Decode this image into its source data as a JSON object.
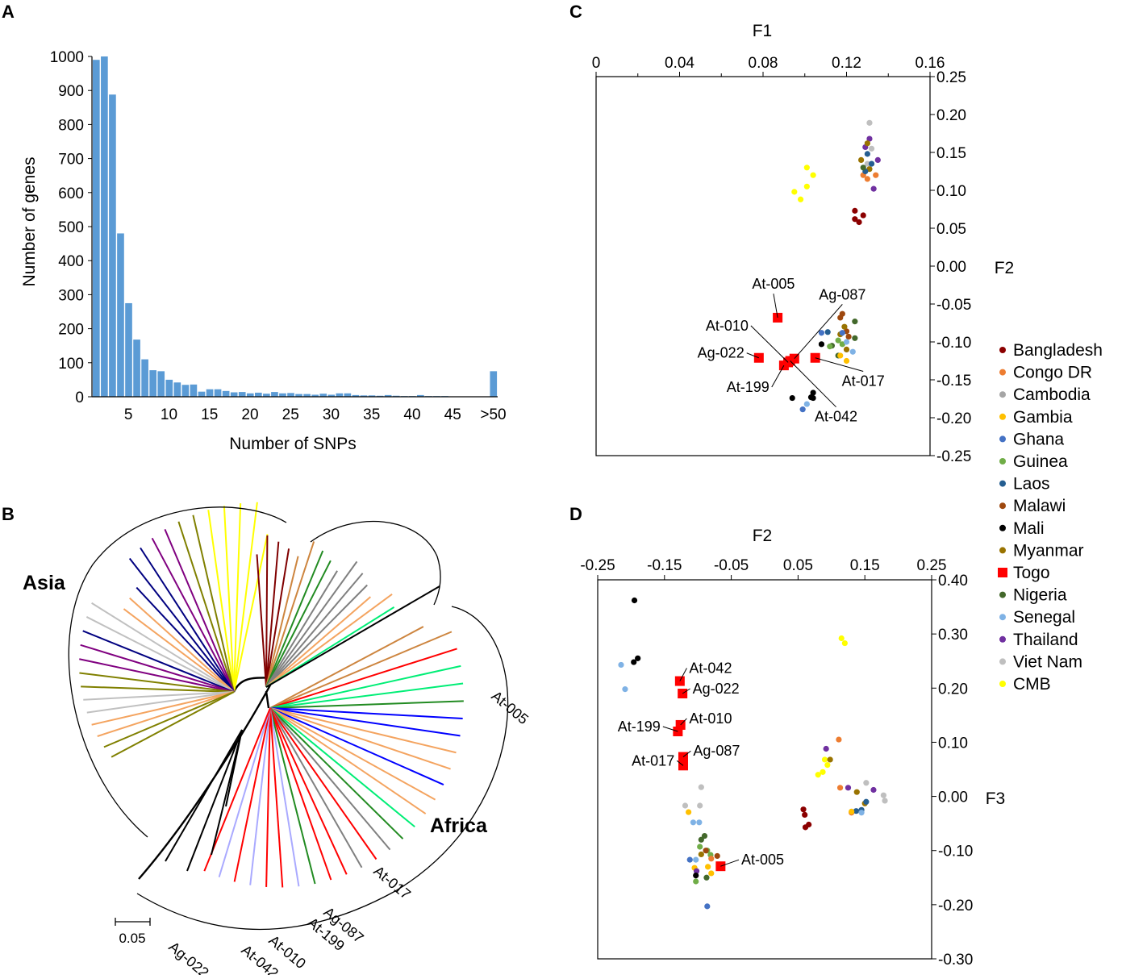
{
  "panels": {
    "A": "A",
    "B": "B",
    "C": "C",
    "D": "D"
  },
  "chart_data": [
    {
      "id": "A",
      "type": "bar",
      "title": "",
      "xlabel": "Number of SNPs",
      "ylabel": "Number of genes",
      "ylim": [
        0,
        1000
      ],
      "yticks": [
        0,
        100,
        200,
        300,
        400,
        500,
        600,
        700,
        800,
        900,
        1000
      ],
      "xtick_labels": [
        "5",
        "10",
        "15",
        "20",
        "25",
        "30",
        "35",
        "40",
        "45",
        ">50"
      ],
      "xtick_positions": [
        5,
        10,
        15,
        20,
        25,
        30,
        35,
        40,
        45,
        50
      ],
      "categories": [
        1,
        2,
        3,
        4,
        5,
        6,
        7,
        8,
        9,
        10,
        11,
        12,
        13,
        14,
        15,
        16,
        17,
        18,
        19,
        20,
        21,
        22,
        23,
        24,
        25,
        26,
        27,
        28,
        29,
        30,
        31,
        32,
        33,
        34,
        35,
        36,
        37,
        38,
        39,
        40,
        41,
        42,
        43,
        44,
        45,
        46,
        47,
        48,
        49,
        50
      ],
      "values": [
        990,
        1000,
        888,
        480,
        275,
        168,
        110,
        78,
        75,
        50,
        42,
        35,
        36,
        15,
        22,
        22,
        17,
        13,
        14,
        10,
        12,
        9,
        14,
        10,
        11,
        8,
        8,
        6,
        9,
        6,
        10,
        10,
        5,
        4,
        4,
        3,
        5,
        3,
        2,
        2,
        5,
        2,
        2,
        2,
        1,
        1,
        1,
        1,
        1,
        75
      ],
      "color": "#5b9bd5"
    },
    {
      "id": "B",
      "type": "tree",
      "labels": {
        "asia": "Asia",
        "africa": "Africa",
        "scale": "0.05",
        "tips": [
          "At-005",
          "At-017",
          "Ag-087",
          "At-199",
          "At-010",
          "At-042",
          "Ag-022"
        ]
      }
    },
    {
      "id": "C",
      "type": "scatter",
      "xlabel": "F1",
      "ylabel": "F2",
      "xlim": [
        0,
        0.16
      ],
      "ylim": [
        -0.25,
        0.25
      ],
      "xticks": [
        "0",
        "0.04",
        "0.08",
        "0.12",
        "0.16"
      ],
      "xtick_values": [
        0,
        0.04,
        0.08,
        0.12,
        0.16
      ],
      "yticks": [
        "0.25",
        "0.20",
        "0.15",
        "0.10",
        "0.05",
        "0.00",
        "-0.05",
        "-0.10",
        "-0.15",
        "-0.20",
        "-0.25"
      ],
      "ytick_values": [
        0.25,
        0.2,
        0.15,
        0.1,
        0.05,
        0,
        -0.05,
        -0.1,
        -0.15,
        -0.2,
        -0.25
      ],
      "points": [
        {
          "c": "CMB",
          "x": 0.101,
          "y": 0.13
        },
        {
          "c": "CMB",
          "x": 0.104,
          "y": 0.12
        },
        {
          "c": "CMB",
          "x": 0.101,
          "y": 0.105
        },
        {
          "c": "CMB",
          "x": 0.095,
          "y": 0.098
        },
        {
          "c": "CMB",
          "x": 0.098,
          "y": 0.088
        },
        {
          "c": "Viet Nam",
          "x": 0.131,
          "y": 0.189
        },
        {
          "c": "Viet Nam",
          "x": 0.132,
          "y": 0.155
        },
        {
          "c": "Viet Nam",
          "x": 0.13,
          "y": 0.135
        },
        {
          "c": "Thailand",
          "x": 0.131,
          "y": 0.168
        },
        {
          "c": "Thailand",
          "x": 0.129,
          "y": 0.157
        },
        {
          "c": "Thailand",
          "x": 0.135,
          "y": 0.14
        },
        {
          "c": "Thailand",
          "x": 0.133,
          "y": 0.102
        },
        {
          "c": "Myanmar",
          "x": 0.13,
          "y": 0.162
        },
        {
          "c": "Myanmar",
          "x": 0.127,
          "y": 0.14
        },
        {
          "c": "Myanmar",
          "x": 0.131,
          "y": 0.128
        },
        {
          "c": "Congo DR",
          "x": 0.128,
          "y": 0.12
        },
        {
          "c": "Congo DR",
          "x": 0.134,
          "y": 0.12
        },
        {
          "c": "Congo DR",
          "x": 0.13,
          "y": 0.115
        },
        {
          "c": "Laos",
          "x": 0.13,
          "y": 0.148
        },
        {
          "c": "Laos",
          "x": 0.129,
          "y": 0.125
        },
        {
          "c": "Laos",
          "x": 0.132,
          "y": 0.135
        },
        {
          "c": "Nigeria",
          "x": 0.128,
          "y": 0.13
        },
        {
          "c": "Bangladesh",
          "x": 0.124,
          "y": 0.073
        },
        {
          "c": "Bangladesh",
          "x": 0.128,
          "y": 0.067
        },
        {
          "c": "Bangladesh",
          "x": 0.124,
          "y": 0.062
        },
        {
          "c": "Bangladesh",
          "x": 0.126,
          "y": 0.058
        },
        {
          "c": "Malawi",
          "x": 0.118,
          "y": -0.063
        },
        {
          "c": "Malawi",
          "x": 0.117,
          "y": -0.068
        },
        {
          "c": "Malawi",
          "x": 0.12,
          "y": -0.086
        },
        {
          "c": "Malawi",
          "x": 0.121,
          "y": -0.093
        },
        {
          "c": "Myanmar",
          "x": 0.119,
          "y": -0.08
        },
        {
          "c": "Myanmar",
          "x": 0.117,
          "y": -0.09
        },
        {
          "c": "Myanmar",
          "x": 0.12,
          "y": -0.11
        },
        {
          "c": "Nigeria",
          "x": 0.124,
          "y": -0.073
        },
        {
          "c": "Nigeria",
          "x": 0.124,
          "y": -0.095
        },
        {
          "c": "Nigeria",
          "x": 0.113,
          "y": -0.105
        },
        {
          "c": "Nigeria",
          "x": 0.116,
          "y": -0.118
        },
        {
          "c": "Guinea",
          "x": 0.116,
          "y": -0.098
        },
        {
          "c": "Guinea",
          "x": 0.118,
          "y": -0.103
        },
        {
          "c": "Guinea",
          "x": 0.112,
          "y": -0.106
        },
        {
          "c": "Ghana",
          "x": 0.108,
          "y": -0.088
        },
        {
          "c": "Ghana",
          "x": 0.118,
          "y": -0.088
        },
        {
          "c": "Laos",
          "x": 0.111,
          "y": -0.087
        },
        {
          "c": "Senegal",
          "x": 0.12,
          "y": -0.1
        },
        {
          "c": "Senegal",
          "x": 0.123,
          "y": -0.113
        },
        {
          "c": "Senegal",
          "x": 0.101,
          "y": -0.182
        },
        {
          "c": "Gambia",
          "x": 0.117,
          "y": -0.118
        },
        {
          "c": "Gambia",
          "x": 0.12,
          "y": -0.125
        },
        {
          "c": "Mali",
          "x": 0.108,
          "y": -0.103
        },
        {
          "c": "Mali",
          "x": 0.104,
          "y": -0.167
        },
        {
          "c": "Mali",
          "x": 0.103,
          "y": -0.173
        },
        {
          "c": "Mali",
          "x": 0.094,
          "y": -0.174
        },
        {
          "c": "Mali",
          "x": 0.104,
          "y": -0.174
        },
        {
          "c": "Ghana",
          "x": 0.099,
          "y": -0.189
        },
        {
          "c": "Togo",
          "x": 0.087,
          "y": -0.068,
          "label": "At-005",
          "lx": 0.085,
          "ly": -0.03,
          "la": "middle"
        },
        {
          "c": "Togo",
          "x": 0.078,
          "y": -0.121,
          "label": "Ag-022",
          "lx": 0.071,
          "ly": -0.121,
          "la": "end"
        },
        {
          "c": "Togo",
          "x": 0.092,
          "y": -0.127,
          "label": "At-010",
          "lx": 0.073,
          "ly": -0.085,
          "la": "end"
        },
        {
          "c": "Togo",
          "x": 0.095,
          "y": -0.122,
          "label": "Ag-087",
          "lx": 0.118,
          "ly": -0.044,
          "la": "middle"
        },
        {
          "c": "Togo",
          "x": 0.105,
          "y": -0.121,
          "label": "At-017",
          "lx": 0.128,
          "ly": -0.158,
          "la": "middle"
        },
        {
          "c": "Togo",
          "x": 0.09,
          "y": -0.131,
          "label": "At-199",
          "lx": 0.083,
          "ly": -0.166,
          "la": "end"
        },
        {
          "c": "Togo",
          "x": 0.093,
          "y": -0.125,
          "label": "At-042",
          "lx": 0.115,
          "ly": -0.205,
          "la": "middle"
        }
      ]
    },
    {
      "id": "D",
      "type": "scatter",
      "xlabel": "F2",
      "ylabel": "F3",
      "xlim": [
        -0.25,
        0.25
      ],
      "ylim": [
        -0.3,
        0.4
      ],
      "xticks": [
        "-0.25",
        "-0.15",
        "-0.05",
        "0.05",
        "0.15",
        "0.25"
      ],
      "xtick_values": [
        -0.25,
        -0.15,
        -0.05,
        0.05,
        0.15,
        0.25
      ],
      "yticks": [
        "0.40",
        "0.30",
        "0.20",
        "0.10",
        "0.00",
        "-0.10",
        "-0.20",
        "-0.30"
      ],
      "ytick_values": [
        0.4,
        0.3,
        0.2,
        0.1,
        0,
        -0.1,
        -0.2,
        -0.3
      ],
      "points": [
        {
          "c": "Mali",
          "x": -0.195,
          "y": 0.362
        },
        {
          "c": "Mali",
          "x": -0.19,
          "y": 0.255
        },
        {
          "c": "Mali",
          "x": -0.196,
          "y": 0.248
        },
        {
          "c": "Senegal",
          "x": -0.215,
          "y": 0.243
        },
        {
          "c": "Senegal",
          "x": -0.209,
          "y": 0.198
        },
        {
          "c": "CMB",
          "x": 0.115,
          "y": 0.292
        },
        {
          "c": "CMB",
          "x": 0.12,
          "y": 0.283
        },
        {
          "c": "CMB",
          "x": 0.09,
          "y": 0.068
        },
        {
          "c": "CMB",
          "x": 0.094,
          "y": 0.058
        },
        {
          "c": "CMB",
          "x": 0.08,
          "y": 0.04
        },
        {
          "c": "CMB",
          "x": 0.087,
          "y": 0.045
        },
        {
          "c": "Congo DR",
          "x": 0.111,
          "y": 0.105
        },
        {
          "c": "Congo DR",
          "x": 0.113,
          "y": 0.016
        },
        {
          "c": "Congo DR",
          "x": 0.13,
          "y": -0.03
        },
        {
          "c": "Thailand",
          "x": 0.092,
          "y": 0.088
        },
        {
          "c": "Thailand",
          "x": 0.125,
          "y": 0.016
        },
        {
          "c": "Thailand",
          "x": 0.163,
          "y": 0.012
        },
        {
          "c": "Myanmar",
          "x": 0.098,
          "y": 0.068
        },
        {
          "c": "Myanmar",
          "x": 0.138,
          "y": 0.008
        },
        {
          "c": "Myanmar",
          "x": 0.15,
          "y": -0.013
        },
        {
          "c": "Viet Nam",
          "x": 0.152,
          "y": 0.025
        },
        {
          "c": "Viet Nam",
          "x": 0.178,
          "y": 0.002
        },
        {
          "c": "Viet Nam",
          "x": 0.18,
          "y": -0.008
        },
        {
          "c": "Laos",
          "x": 0.145,
          "y": -0.025
        },
        {
          "c": "Laos",
          "x": 0.137,
          "y": -0.027
        },
        {
          "c": "Laos",
          "x": 0.152,
          "y": -0.01
        },
        {
          "c": "Senegal",
          "x": 0.145,
          "y": -0.03
        },
        {
          "c": "Gambia",
          "x": 0.13,
          "y": -0.028
        },
        {
          "c": "Bangladesh",
          "x": 0.058,
          "y": -0.024
        },
        {
          "c": "Bangladesh",
          "x": 0.06,
          "y": -0.034
        },
        {
          "c": "Bangladesh",
          "x": 0.066,
          "y": -0.052
        },
        {
          "c": "Bangladesh",
          "x": 0.061,
          "y": -0.057
        },
        {
          "c": "Viet Nam",
          "x": -0.095,
          "y": 0.017
        },
        {
          "c": "Viet Nam",
          "x": -0.119,
          "y": -0.017
        },
        {
          "c": "Viet Nam",
          "x": -0.097,
          "y": -0.017
        },
        {
          "c": "Gambia",
          "x": -0.114,
          "y": -0.029
        },
        {
          "c": "Gambia",
          "x": -0.105,
          "y": -0.132
        },
        {
          "c": "Gambia",
          "x": -0.085,
          "y": -0.13
        },
        {
          "c": "Gambia",
          "x": -0.08,
          "y": -0.142
        },
        {
          "c": "Senegal",
          "x": -0.107,
          "y": -0.048
        },
        {
          "c": "Senegal",
          "x": -0.098,
          "y": -0.048
        },
        {
          "c": "Senegal",
          "x": -0.103,
          "y": -0.117
        },
        {
          "c": "Nigeria",
          "x": -0.095,
          "y": -0.08
        },
        {
          "c": "Nigeria",
          "x": -0.09,
          "y": -0.073
        },
        {
          "c": "Nigeria",
          "x": -0.087,
          "y": -0.15
        },
        {
          "c": "Guinea",
          "x": -0.097,
          "y": -0.093
        },
        {
          "c": "Guinea",
          "x": -0.086,
          "y": -0.1
        },
        {
          "c": "Guinea",
          "x": -0.081,
          "y": -0.108
        },
        {
          "c": "Guinea",
          "x": -0.103,
          "y": -0.157
        },
        {
          "c": "Malawi",
          "x": -0.088,
          "y": -0.1
        },
        {
          "c": "Malawi",
          "x": -0.071,
          "y": -0.11
        },
        {
          "c": "Myanmar",
          "x": -0.095,
          "y": -0.107
        },
        {
          "c": "Congo DR",
          "x": -0.08,
          "y": -0.115
        },
        {
          "c": "Ghana",
          "x": -0.112,
          "y": -0.117
        },
        {
          "c": "Ghana",
          "x": -0.086,
          "y": -0.203
        },
        {
          "c": "Thailand",
          "x": -0.102,
          "y": -0.138
        },
        {
          "c": "Mali",
          "x": -0.103,
          "y": -0.146
        },
        {
          "c": "Togo",
          "x": -0.127,
          "y": 0.213,
          "label": "At-042",
          "lx": -0.113,
          "ly": 0.228,
          "la": "start"
        },
        {
          "c": "Togo",
          "x": -0.123,
          "y": 0.19,
          "label": "Ag-022",
          "lx": -0.108,
          "ly": 0.19,
          "la": "start"
        },
        {
          "c": "Togo",
          "x": -0.126,
          "y": 0.132,
          "label": "At-010",
          "lx": -0.113,
          "ly": 0.135,
          "la": "start"
        },
        {
          "c": "Togo",
          "x": -0.13,
          "y": 0.12,
          "label": "At-199",
          "lx": -0.156,
          "ly": 0.12,
          "la": "end"
        },
        {
          "c": "Togo",
          "x": -0.122,
          "y": 0.073,
          "label": "Ag-087",
          "lx": -0.107,
          "ly": 0.075,
          "la": "start"
        },
        {
          "c": "Togo",
          "x": -0.122,
          "y": 0.057,
          "label": "At-017",
          "lx": -0.135,
          "ly": 0.057,
          "la": "end"
        },
        {
          "c": "Togo",
          "x": -0.066,
          "y": -0.129,
          "label": "At-005",
          "lx": -0.035,
          "ly": -0.126,
          "la": "start"
        }
      ]
    }
  ],
  "legend": [
    {
      "name": "Bangladesh",
      "color": "#8b0000",
      "shape": "circle"
    },
    {
      "name": "Congo DR",
      "color": "#ed7d31",
      "shape": "circle"
    },
    {
      "name": "Cambodia",
      "color": "#a5a5a5",
      "shape": "circle"
    },
    {
      "name": "Gambia",
      "color": "#ffc000",
      "shape": "circle"
    },
    {
      "name": "Ghana",
      "color": "#4472c4",
      "shape": "circle"
    },
    {
      "name": "Guinea",
      "color": "#70ad47",
      "shape": "circle"
    },
    {
      "name": "Laos",
      "color": "#255e91",
      "shape": "circle"
    },
    {
      "name": "Malawi",
      "color": "#9e480e",
      "shape": "circle"
    },
    {
      "name": "Mali",
      "color": "#000000",
      "shape": "circle"
    },
    {
      "name": "Myanmar",
      "color": "#997300",
      "shape": "circle"
    },
    {
      "name": "Togo",
      "color": "#ff0000",
      "shape": "square"
    },
    {
      "name": "Nigeria",
      "color": "#43682b",
      "shape": "circle"
    },
    {
      "name": "Senegal",
      "color": "#7fb2e5",
      "shape": "circle"
    },
    {
      "name": "Thailand",
      "color": "#7030a0",
      "shape": "circle"
    },
    {
      "name": "Viet Nam",
      "color": "#bfbfbf",
      "shape": "circle"
    },
    {
      "name": "CMB",
      "color": "#ffff00",
      "shape": "circle"
    }
  ],
  "tree": {
    "asia_colors": [
      "#ffff00",
      "#ffff00",
      "#ffff00",
      "#ffff00",
      "#ffff00",
      "#808000",
      "#808000",
      "#800080",
      "#800080",
      "#000080",
      "#000080",
      "#000080",
      "#f4a460",
      "#f4a460",
      "#c0c0c0",
      "#c0c0c0",
      "#000080",
      "#800080",
      "#800080",
      "#808000",
      "#808000",
      "#c0c0c0",
      "#c0c0c0",
      "#f4a460",
      "#f4a460",
      "#808000",
      "#808000"
    ],
    "ab_colors": [
      "#800000",
      "#800000",
      "#800000",
      "#800000",
      "#cd853f",
      "#cd853f",
      "#228b22",
      "#228b22",
      "#808080",
      "#808080",
      "#808080",
      "#808080",
      "#f4a460",
      "#f4a460",
      "#00ee76"
    ],
    "africa_colors": [
      "#cd853f",
      "#cd853f",
      "#ff0000",
      "#00ee76",
      "#00ee76",
      "#228b22",
      "#0000ff",
      "#0000ff",
      "#f4a460",
      "#f4a460",
      "#0000ff",
      "#f4a460",
      "#f4a460",
      "#00ee76",
      "#228b22",
      "#808080",
      "#ff0000",
      "#808080",
      "#ff0000",
      "#ff0000",
      "#228b22",
      "#aaaaff",
      "#ff0000",
      "#ff0000",
      "#aaaaff",
      "#ff0000",
      "#aaaaff",
      "#ff0000"
    ]
  }
}
